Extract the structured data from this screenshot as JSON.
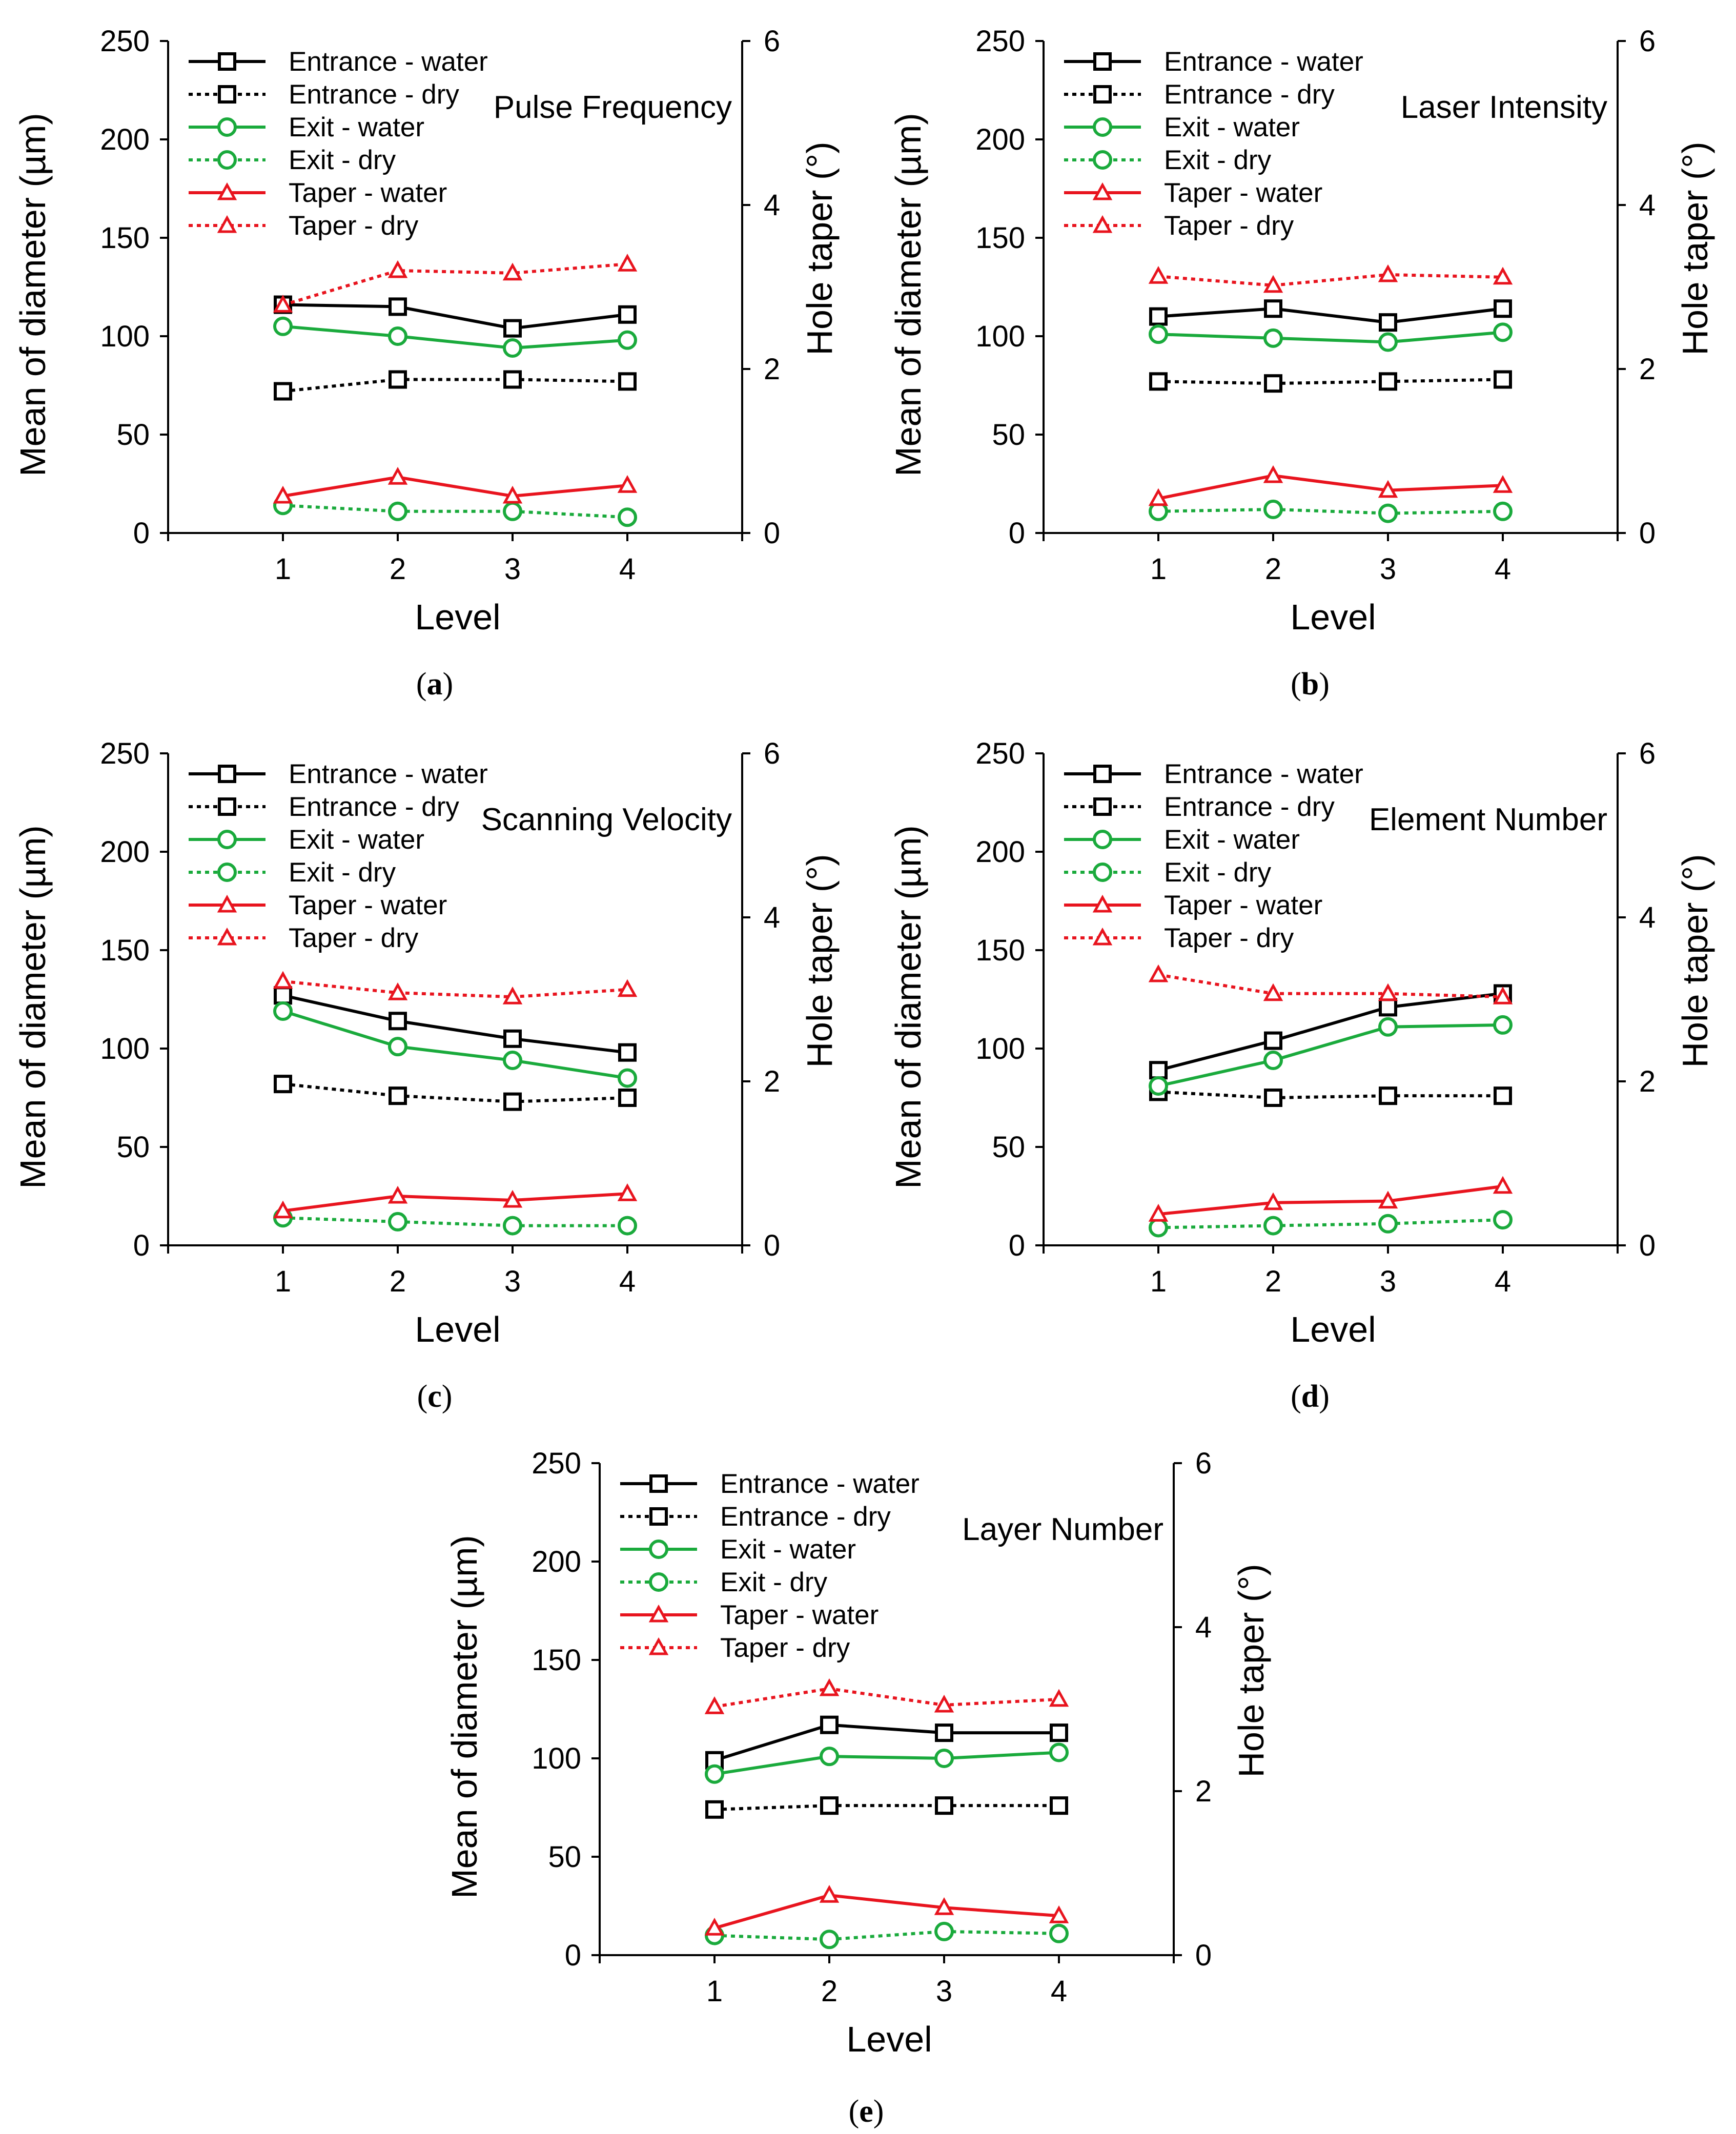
{
  "figure": {
    "y_axis_label": "Mean of diameter (µm)",
    "y2_axis_label": "Hole taper (°)",
    "x_axis_label": "Level",
    "legend": [
      {
        "label": "Entrance - water",
        "color": "#000000",
        "marker": "square",
        "dashed": false,
        "axis": "left"
      },
      {
        "label": "Entrance - dry",
        "color": "#000000",
        "marker": "square",
        "dashed": true,
        "axis": "left"
      },
      {
        "label": "Exit - water",
        "color": "#1aaa3c",
        "marker": "circle",
        "dashed": false,
        "axis": "left"
      },
      {
        "label": "Exit - dry",
        "color": "#1aaa3c",
        "marker": "circle",
        "dashed": true,
        "axis": "left"
      },
      {
        "label": "Taper - water",
        "color": "#e8141e",
        "marker": "triangle",
        "dashed": false,
        "axis": "right"
      },
      {
        "label": "Taper - dry",
        "color": "#e8141e",
        "marker": "triangle",
        "dashed": true,
        "axis": "right"
      }
    ]
  },
  "chart_data": [
    {
      "type": "line",
      "caption_prefix": "(",
      "caption_letter": "a",
      "caption_suffix": ")",
      "title": "Pulse Frequency",
      "xlabel": "Level",
      "ylabel": "Mean of diameter (µm)",
      "y2label": "Hole taper (°)",
      "x": [
        1,
        2,
        3,
        4
      ],
      "xticks": [
        "1",
        "2",
        "3",
        "4"
      ],
      "xlim": [
        0,
        5
      ],
      "ylim": [
        0,
        250
      ],
      "yticks": [
        "0",
        "50",
        "100",
        "150",
        "200",
        "250"
      ],
      "y2lim": [
        0,
        6
      ],
      "y2ticks": [
        "0",
        "2",
        "4",
        "6"
      ],
      "series": [
        {
          "name": "Entrance - water",
          "values": [
            116,
            115,
            104,
            111
          ]
        },
        {
          "name": "Entrance - dry",
          "values": [
            72,
            78,
            78,
            77
          ]
        },
        {
          "name": "Exit - water",
          "values": [
            105,
            100,
            94,
            98
          ]
        },
        {
          "name": "Exit - dry",
          "values": [
            14,
            11,
            11,
            8
          ]
        },
        {
          "name": "Taper - water",
          "values": [
            0.45,
            0.68,
            0.45,
            0.58
          ]
        },
        {
          "name": "Taper - dry",
          "values": [
            2.78,
            3.2,
            3.17,
            3.28
          ]
        }
      ]
    },
    {
      "type": "line",
      "caption_prefix": "(",
      "caption_letter": "b",
      "caption_suffix": ")",
      "title": "Laser Intensity",
      "xlabel": "Level",
      "ylabel": "Mean of diameter (µm)",
      "y2label": "Hole taper (°)",
      "x": [
        1,
        2,
        3,
        4
      ],
      "xticks": [
        "1",
        "2",
        "3",
        "4"
      ],
      "xlim": [
        0,
        5
      ],
      "ylim": [
        0,
        250
      ],
      "yticks": [
        "0",
        "50",
        "100",
        "150",
        "200",
        "250"
      ],
      "y2lim": [
        0,
        6
      ],
      "y2ticks": [
        "0",
        "2",
        "4",
        "6"
      ],
      "series": [
        {
          "name": "Entrance - water",
          "values": [
            110,
            114,
            107,
            114
          ]
        },
        {
          "name": "Entrance - dry",
          "values": [
            77,
            76,
            77,
            78
          ]
        },
        {
          "name": "Exit - water",
          "values": [
            101,
            99,
            97,
            102
          ]
        },
        {
          "name": "Exit - dry",
          "values": [
            11,
            12,
            10,
            11
          ]
        },
        {
          "name": "Taper - water",
          "values": [
            0.42,
            0.7,
            0.52,
            0.58
          ]
        },
        {
          "name": "Taper - dry",
          "values": [
            3.13,
            3.02,
            3.15,
            3.12
          ]
        }
      ]
    },
    {
      "type": "line",
      "caption_prefix": "(",
      "caption_letter": "c",
      "caption_suffix": ")",
      "title": "Scanning Velocity",
      "xlabel": "Level",
      "ylabel": "Mean of diameter (µm)",
      "y2label": "Hole taper (°)",
      "x": [
        1,
        2,
        3,
        4
      ],
      "xticks": [
        "1",
        "2",
        "3",
        "4"
      ],
      "xlim": [
        0,
        5
      ],
      "ylim": [
        0,
        250
      ],
      "yticks": [
        "0",
        "50",
        "100",
        "150",
        "200",
        "250"
      ],
      "y2lim": [
        0,
        6
      ],
      "y2ticks": [
        "0",
        "2",
        "4",
        "6"
      ],
      "series": [
        {
          "name": "Entrance - water",
          "values": [
            127,
            114,
            105,
            98
          ]
        },
        {
          "name": "Entrance - dry",
          "values": [
            82,
            76,
            73,
            75
          ]
        },
        {
          "name": "Exit - water",
          "values": [
            119,
            101,
            94,
            85
          ]
        },
        {
          "name": "Exit - dry",
          "values": [
            14,
            12,
            10,
            10
          ]
        },
        {
          "name": "Taper - water",
          "values": [
            0.42,
            0.6,
            0.55,
            0.63
          ]
        },
        {
          "name": "Taper - dry",
          "values": [
            3.22,
            3.08,
            3.03,
            3.12
          ]
        }
      ]
    },
    {
      "type": "line",
      "caption_prefix": "(",
      "caption_letter": "d",
      "caption_suffix": ")",
      "title": "Element Number",
      "xlabel": "Level",
      "ylabel": "Mean of diameter (µm)",
      "y2label": "Hole taper (°)",
      "x": [
        1,
        2,
        3,
        4
      ],
      "xticks": [
        "1",
        "2",
        "3",
        "4"
      ],
      "xlim": [
        0,
        5
      ],
      "ylim": [
        0,
        250
      ],
      "yticks": [
        "0",
        "50",
        "100",
        "150",
        "200",
        "250"
      ],
      "y2lim": [
        0,
        6
      ],
      "y2ticks": [
        "0",
        "2",
        "4",
        "6"
      ],
      "series": [
        {
          "name": "Entrance - water",
          "values": [
            89,
            104,
            121,
            128
          ]
        },
        {
          "name": "Entrance - dry",
          "values": [
            78,
            75,
            76,
            76
          ]
        },
        {
          "name": "Exit - water",
          "values": [
            81,
            94,
            111,
            112
          ]
        },
        {
          "name": "Exit - dry",
          "values": [
            9,
            10,
            11,
            13
          ]
        },
        {
          "name": "Taper - water",
          "values": [
            0.38,
            0.52,
            0.54,
            0.72
          ]
        },
        {
          "name": "Taper - dry",
          "values": [
            3.3,
            3.07,
            3.07,
            3.03
          ]
        }
      ]
    },
    {
      "type": "line",
      "caption_prefix": "(",
      "caption_letter": "e",
      "caption_suffix": ")",
      "title": "Layer Number",
      "xlabel": "Level",
      "ylabel": "Mean of diameter (µm)",
      "y2label": "Hole taper (°)",
      "x": [
        1,
        2,
        3,
        4
      ],
      "xticks": [
        "1",
        "2",
        "3",
        "4"
      ],
      "xlim": [
        0,
        5
      ],
      "ylim": [
        0,
        250
      ],
      "yticks": [
        "0",
        "50",
        "100",
        "150",
        "200",
        "250"
      ],
      "y2lim": [
        0,
        6
      ],
      "y2ticks": [
        "0",
        "2",
        "4",
        "6"
      ],
      "series": [
        {
          "name": "Entrance - water",
          "values": [
            99,
            117,
            113,
            113
          ]
        },
        {
          "name": "Entrance - dry",
          "values": [
            74,
            76,
            76,
            76
          ]
        },
        {
          "name": "Exit - water",
          "values": [
            92,
            101,
            100,
            103
          ]
        },
        {
          "name": "Exit - dry",
          "values": [
            10,
            8,
            12,
            11
          ]
        },
        {
          "name": "Taper - water",
          "values": [
            0.33,
            0.73,
            0.58,
            0.48
          ]
        },
        {
          "name": "Taper - dry",
          "values": [
            3.03,
            3.25,
            3.05,
            3.12
          ]
        }
      ]
    }
  ]
}
